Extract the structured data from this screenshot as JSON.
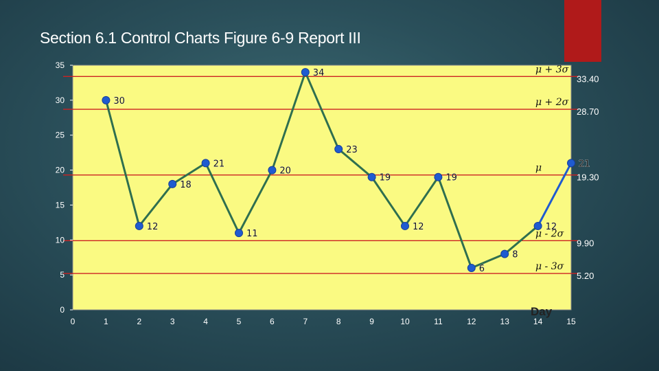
{
  "slide": {
    "title": "Section 6.1 Control Charts Figure 6-9 Report III",
    "accent_color": "#b01a1a",
    "plot_bg": "#fafa82"
  },
  "chart_data": {
    "type": "line",
    "title": "",
    "xlabel": "Day",
    "ylabel": "",
    "xlim": [
      0,
      15
    ],
    "ylim": [
      0,
      35
    ],
    "x_ticks": [
      "0",
      "1",
      "2",
      "3",
      "4",
      "5",
      "6",
      "7",
      "8",
      "9",
      "10",
      "11",
      "12",
      "13",
      "14",
      "15"
    ],
    "y_ticks": [
      "0",
      "5",
      "10",
      "15",
      "20",
      "25",
      "30",
      "35"
    ],
    "series": [
      {
        "color": "#2f6f4f",
        "x": [
          1,
          2,
          3,
          4,
          5,
          6,
          7,
          8,
          9,
          10,
          11,
          12,
          13,
          14
        ],
        "values": [
          30,
          12,
          18,
          21,
          11,
          20,
          34,
          23,
          19,
          12,
          19,
          6,
          8,
          12
        ],
        "labels": [
          "30",
          "12",
          "18",
          "21",
          "11",
          "20",
          "34",
          "23",
          "19",
          "12",
          "19",
          "6",
          "8",
          "12"
        ]
      },
      {
        "color": "#1f5bd0",
        "x": [
          14,
          15
        ],
        "values": [
          12,
          21
        ],
        "labels": [
          "",
          "21"
        ]
      }
    ],
    "control_lines": [
      {
        "label": "μ + 3σ",
        "value": 33.4,
        "value_text": "33.40"
      },
      {
        "label": "μ + 2σ",
        "value": 28.7,
        "value_text": "28.70"
      },
      {
        "label": "μ",
        "value": 19.3,
        "value_text": "19.30"
      },
      {
        "label": "μ - 2σ",
        "value": 9.9,
        "value_text": "9.90"
      },
      {
        "label": "μ - 3σ",
        "value": 5.2,
        "value_text": "5.20"
      }
    ],
    "control_line_color": "#cc2222",
    "grid": false
  }
}
